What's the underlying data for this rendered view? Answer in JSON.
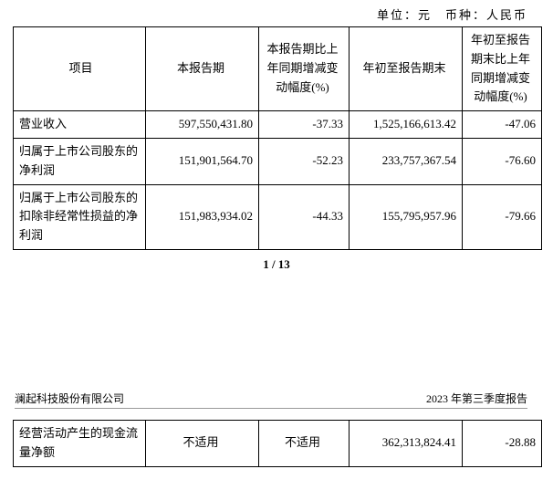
{
  "unit_line": "单位：元　币种：人民币",
  "table1": {
    "headers": {
      "c1": "项目",
      "c2": "本报告期",
      "c3": "本报告期比上年同期增减变动幅度(%)",
      "c4": "年初至报告期末",
      "c5": "年初至报告期末比上年同期增减变动幅度(%)"
    },
    "rows": [
      {
        "c1": "营业收入",
        "c2": "597,550,431.80",
        "c3": "-37.33",
        "c4": "1,525,166,613.42",
        "c5": "-47.06"
      },
      {
        "c1": "归属于上市公司股东的净利润",
        "c2": "151,901,564.70",
        "c3": "-52.23",
        "c4": "233,757,367.54",
        "c5": "-76.60"
      },
      {
        "c1": "归属于上市公司股东的扣除非经常性损益的净利润",
        "c2": "151,983,934.02",
        "c3": "-44.33",
        "c4": "155,795,957.96",
        "c5": "-79.66"
      }
    ]
  },
  "pager": "1 / 13",
  "footer": {
    "left": "澜起科技股份有限公司",
    "right": "2023 年第三季度报告"
  },
  "table2": {
    "rows": [
      {
        "c1": "经营活动产生的现金流量净额",
        "c2": "不适用",
        "c3": "不适用",
        "c4": "362,313,824.41",
        "c5": "-28.88"
      }
    ]
  }
}
